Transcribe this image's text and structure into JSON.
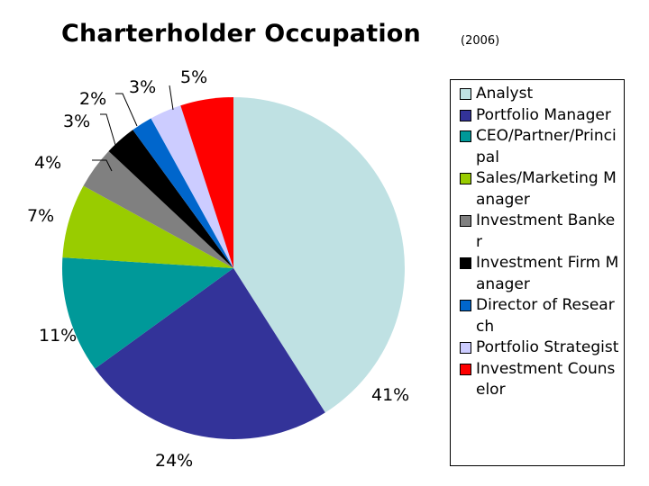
{
  "chart_data": {
    "type": "pie",
    "title": "Charterholder Occupation",
    "subtitle": "(2006)",
    "slices": [
      {
        "label": "Analyst",
        "value": 41,
        "display": "41%",
        "color": "#bfe1e3"
      },
      {
        "label": "Portfolio Manager",
        "value": 24,
        "display": "24%",
        "color": "#333399"
      },
      {
        "label": "CEO/Partner/Principal",
        "value": 11,
        "display": "11%",
        "color": "#009999"
      },
      {
        "label": "Sales/Marketing Manager",
        "value": 7,
        "display": "7%",
        "color": "#99cc00"
      },
      {
        "label": "Investment Banker",
        "value": 4,
        "display": "4%",
        "color": "#808080"
      },
      {
        "label": "Investment Firm Manager",
        "value": 3,
        "display": "3%",
        "color": "#000000"
      },
      {
        "label": "Director of Research",
        "value": 2,
        "display": "2%",
        "color": "#0066cc"
      },
      {
        "label": "Portfolio Strategist",
        "value": 3,
        "display": "3%",
        "color": "#ccccff"
      },
      {
        "label": "Investment Counselor",
        "value": 5,
        "display": "5%",
        "color": "#ff0000"
      }
    ],
    "legend_position": "right"
  }
}
